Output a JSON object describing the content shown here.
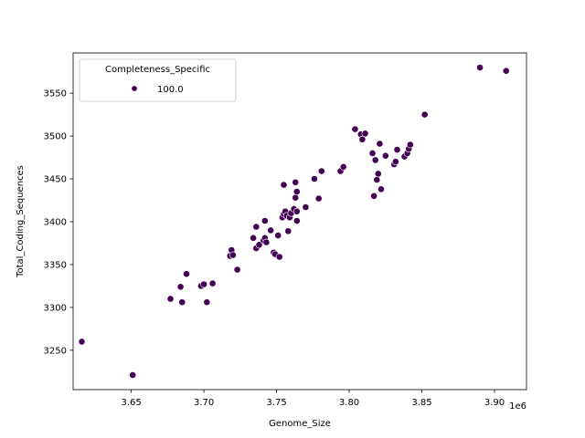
{
  "chart_data": {
    "type": "scatter",
    "title": "",
    "xlabel": "Genome_Size",
    "ylabel": "Total_Coding_Sequences",
    "x_offset_label": "1e6",
    "xlim": [
      3610000,
      3922000
    ],
    "ylim": [
      3204,
      3597
    ],
    "x_ticks": [
      3650000,
      3700000,
      3750000,
      3800000,
      3850000,
      3900000
    ],
    "x_tick_labels": [
      "3.65",
      "3.70",
      "3.75",
      "3.80",
      "3.85",
      "3.90"
    ],
    "y_ticks": [
      3250,
      3300,
      3350,
      3400,
      3450,
      3500,
      3550
    ],
    "y_tick_labels": [
      "3250",
      "3300",
      "3350",
      "3400",
      "3450",
      "3500",
      "3550"
    ],
    "grid": false,
    "legend": {
      "title": "Completeness_Specific",
      "placement": "top-left",
      "entries": [
        "100.0"
      ]
    },
    "marker_color": "#440154",
    "series": [
      {
        "name": "100.0",
        "points": [
          [
            3616000,
            3260
          ],
          [
            3651000,
            3221
          ],
          [
            3677000,
            3310
          ],
          [
            3684000,
            3324
          ],
          [
            3685000,
            3306
          ],
          [
            3688000,
            3339
          ],
          [
            3698000,
            3325
          ],
          [
            3700000,
            3327
          ],
          [
            3702000,
            3306
          ],
          [
            3706000,
            3328
          ],
          [
            3718000,
            3360
          ],
          [
            3719000,
            3367
          ],
          [
            3720000,
            3361
          ],
          [
            3723000,
            3344
          ],
          [
            3734000,
            3381
          ],
          [
            3736000,
            3369
          ],
          [
            3736000,
            3394
          ],
          [
            3738000,
            3373
          ],
          [
            3741000,
            3378
          ],
          [
            3742000,
            3401
          ],
          [
            3742000,
            3381
          ],
          [
            3743000,
            3376
          ],
          [
            3746000,
            3390
          ],
          [
            3748000,
            3364
          ],
          [
            3749000,
            3362
          ],
          [
            3751000,
            3384
          ],
          [
            3752000,
            3359
          ],
          [
            3754000,
            3405
          ],
          [
            3755000,
            3443
          ],
          [
            3755000,
            3409
          ],
          [
            3756000,
            3412
          ],
          [
            3757000,
            3407
          ],
          [
            3758000,
            3389
          ],
          [
            3759000,
            3405
          ],
          [
            3760000,
            3410
          ],
          [
            3762000,
            3415
          ],
          [
            3763000,
            3446
          ],
          [
            3763000,
            3428
          ],
          [
            3764000,
            3435
          ],
          [
            3764000,
            3412
          ],
          [
            3764000,
            3401
          ],
          [
            3770000,
            3417
          ],
          [
            3776000,
            3450
          ],
          [
            3779000,
            3427
          ],
          [
            3781000,
            3459
          ],
          [
            3794000,
            3459
          ],
          [
            3796000,
            3464
          ],
          [
            3804000,
            3508
          ],
          [
            3808000,
            3502
          ],
          [
            3809000,
            3496
          ],
          [
            3811000,
            3503
          ],
          [
            3816000,
            3480
          ],
          [
            3817000,
            3430
          ],
          [
            3818000,
            3472
          ],
          [
            3819000,
            3449
          ],
          [
            3820000,
            3456
          ],
          [
            3821000,
            3491
          ],
          [
            3822000,
            3438
          ],
          [
            3825000,
            3477
          ],
          [
            3831000,
            3467
          ],
          [
            3832000,
            3470
          ],
          [
            3833000,
            3484
          ],
          [
            3838000,
            3476
          ],
          [
            3840000,
            3480
          ],
          [
            3841000,
            3485
          ],
          [
            3842000,
            3490
          ],
          [
            3852000,
            3525
          ],
          [
            3890000,
            3580
          ],
          [
            3908000,
            3576
          ]
        ]
      }
    ]
  }
}
